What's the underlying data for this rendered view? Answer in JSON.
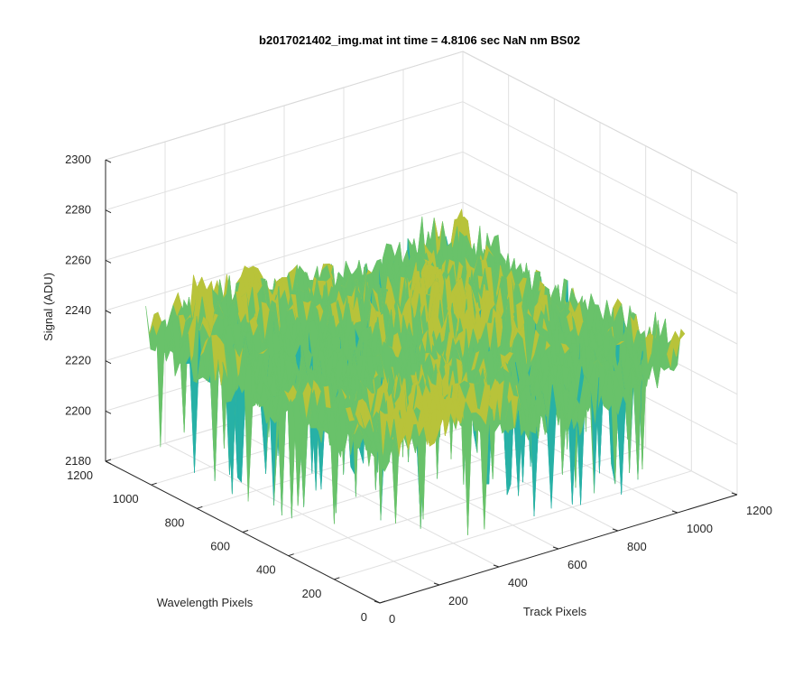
{
  "chart_data": {
    "type": "surface",
    "title": "b2017021402_img.mat int time = 4.8106 sec  NaN nm BS02",
    "xlabel": "Track Pixels",
    "ylabel": "Wavelength Pixels",
    "zlabel": "Signal (ADU)",
    "xlim": [
      0,
      1200
    ],
    "ylim": [
      0,
      1200
    ],
    "zlim": [
      2180,
      2300
    ],
    "x_ticks": [
      "0",
      "200",
      "400",
      "600",
      "800",
      "1000",
      "1200"
    ],
    "y_ticks": [
      "0",
      "200",
      "400",
      "600",
      "800",
      "1000",
      "1200"
    ],
    "z_ticks": [
      "2180",
      "2200",
      "2220",
      "2240",
      "2260",
      "2280",
      "2300"
    ],
    "surface": {
      "x_range": [
        0,
        1024
      ],
      "y_range": [
        0,
        1024
      ],
      "mean_signal": 2240,
      "typical_range": [
        2200,
        2270
      ],
      "min_dips": 2185,
      "colormap": "parula",
      "colors": [
        "#1f9ec9",
        "#27b1a6",
        "#69c26a",
        "#b8c33a",
        "#e8bc2f"
      ]
    },
    "grid": true,
    "box": true
  }
}
